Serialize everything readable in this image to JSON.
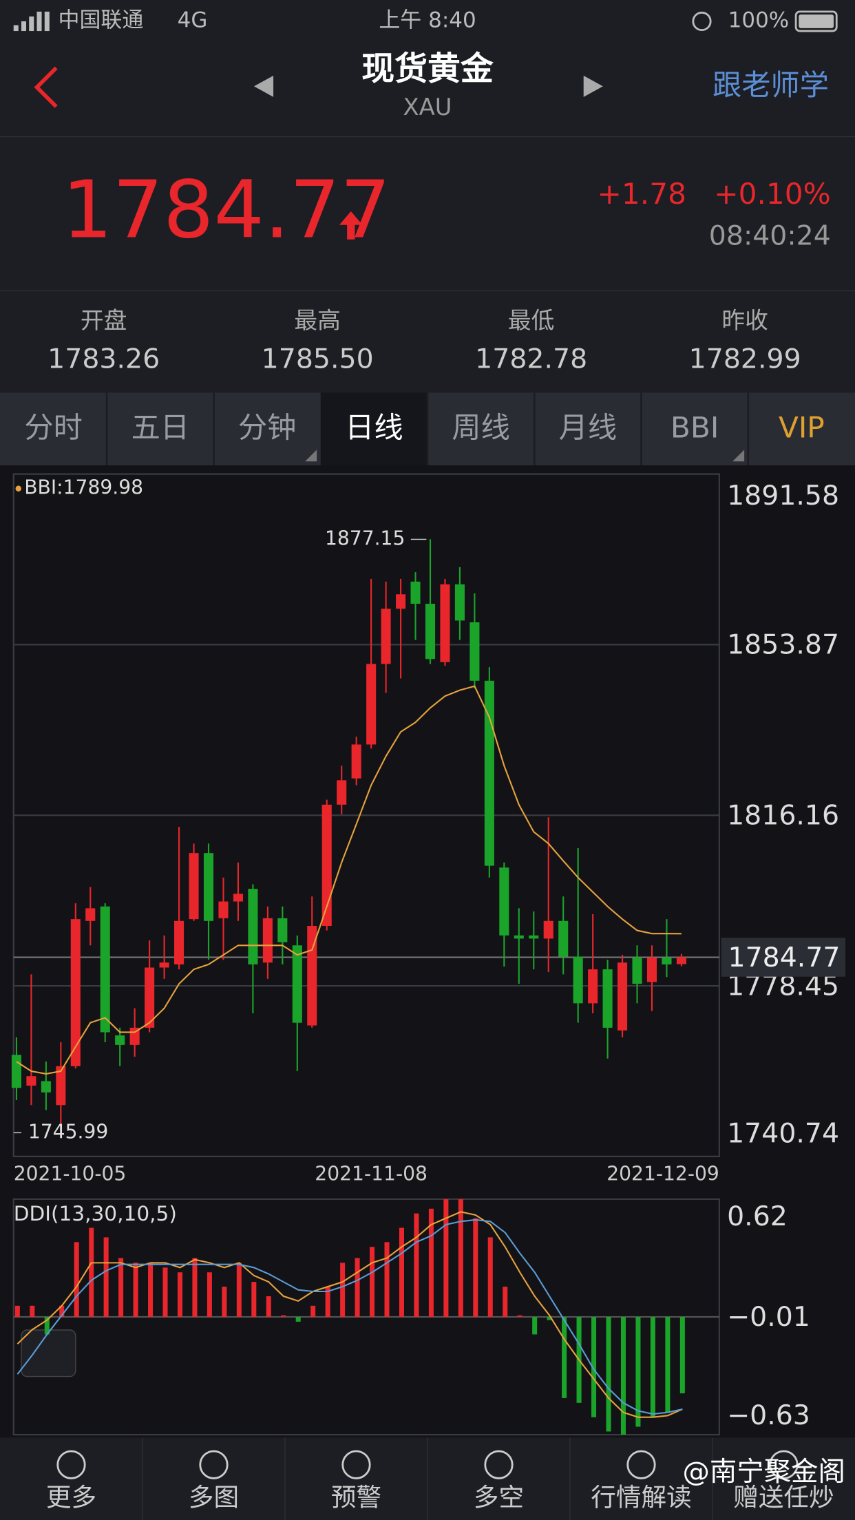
{
  "status": {
    "carrier": "中国联通",
    "network": "4G",
    "time": "上午 8:40",
    "battery": "100%"
  },
  "header": {
    "title": "现货黄金",
    "code": "XAU",
    "action": "跟老师学"
  },
  "quote": {
    "price": "1784.77",
    "change": "+1.78",
    "change_pct": "+0.10%",
    "time": "08:40:24"
  },
  "stats": [
    {
      "label": "开盘",
      "value": "1783.26"
    },
    {
      "label": "最高",
      "value": "1785.50"
    },
    {
      "label": "最低",
      "value": "1782.78"
    },
    {
      "label": "昨收",
      "value": "1782.99"
    }
  ],
  "tabs": [
    "分时",
    "五日",
    "分钟",
    "日线",
    "周线",
    "月线",
    "BBI",
    "VIP"
  ],
  "nav": [
    "更多",
    "多图",
    "预警",
    "多空",
    "行情解读",
    "赠送任炒"
  ],
  "watermark": "@南宁聚金阁",
  "chart_data": [
    {
      "type": "candlestick",
      "categories": [
        "2021-10-05",
        null,
        null,
        null,
        null,
        null,
        null,
        null,
        null,
        null,
        null,
        null,
        null,
        null,
        null,
        null,
        null,
        null,
        null,
        null,
        null,
        null,
        null,
        null,
        "2021-11-08",
        null,
        null,
        null,
        null,
        null,
        null,
        null,
        null,
        null,
        null,
        null,
        null,
        null,
        null,
        null,
        null,
        null,
        null,
        null,
        null,
        "2021-12-09"
      ],
      "open": [
        1763.2,
        1756.4,
        1757.4,
        1752.1,
        1760.7,
        1792.8,
        1796.0,
        1767.5,
        1765.4,
        1769.2,
        1782.5,
        1783.2,
        1793.2,
        1807.8,
        1793.4,
        1797.1,
        1799.9,
        1783.6,
        1793.4,
        1787.4,
        1769.7,
        1791.7,
        1818.5,
        1824.3,
        1831.8,
        1849.6,
        1861.8,
        1867.8,
        1862.9,
        1850.0,
        1867.2,
        1858.8,
        1845.9,
        1804.6,
        1789.6,
        1789.6,
        1788.9,
        1792.8,
        1784.9,
        1774.6,
        1782.1,
        1768.6,
        1784.7,
        1779.3,
        1784.7,
        1783.26
      ],
      "close": [
        1755.9,
        1758.5,
        1754.9,
        1760.7,
        1793.2,
        1795.6,
        1768.2,
        1765.4,
        1769.2,
        1782.5,
        1783.6,
        1792.8,
        1807.8,
        1792.8,
        1797.1,
        1798.8,
        1783.2,
        1793.4,
        1788.1,
        1770.3,
        1791.7,
        1818.5,
        1823.9,
        1831.8,
        1849.6,
        1861.8,
        1865.0,
        1862.9,
        1850.7,
        1867.2,
        1859.2,
        1845.9,
        1805.0,
        1789.6,
        1788.9,
        1788.9,
        1792.8,
        1784.9,
        1774.6,
        1782.1,
        1769.2,
        1783.6,
        1778.9,
        1784.7,
        1783.2,
        1784.77
      ],
      "high": [
        1767.1,
        1781.0,
        1761.7,
        1766.0,
        1796.7,
        1800.3,
        1796.7,
        1769.2,
        1773.5,
        1788.5,
        1789.6,
        1813.6,
        1809.9,
        1809.9,
        1802.4,
        1805.7,
        1800.9,
        1796.0,
        1796.0,
        1789.6,
        1798.2,
        1819.6,
        1827.1,
        1833.5,
        1868.4,
        1867.8,
        1868.4,
        1869.9,
        1877.15,
        1868.4,
        1871.0,
        1865.2,
        1848.9,
        1805.7,
        1795.6,
        1794.9,
        1815.7,
        1798.2,
        1808.9,
        1794.3,
        1784.2,
        1785.3,
        1787.4,
        1787.4,
        1793.2,
        1785.5
      ],
      "low": [
        1753.2,
        1752.1,
        1751.0,
        1745.99,
        1760.2,
        1787.4,
        1766.0,
        1760.7,
        1762.8,
        1768.2,
        1780.0,
        1782.1,
        1792.8,
        1784.2,
        1784.2,
        1792.8,
        1772.4,
        1780.0,
        1783.2,
        1759.6,
        1769.2,
        1790.7,
        1816.4,
        1822.8,
        1830.9,
        1843.2,
        1846.4,
        1854.9,
        1849.6,
        1849.2,
        1854.9,
        1844.2,
        1802.4,
        1782.7,
        1778.9,
        1782.1,
        1781.5,
        1781.0,
        1770.3,
        1772.4,
        1762.4,
        1767.1,
        1774.6,
        1772.9,
        1780.4,
        1782.78
      ],
      "up_color": "#e8262b",
      "down_color": "#1aa42a",
      "bbi": {
        "label": "BBI:1789.98",
        "color": "#e6a23c",
        "values": [
          1761.7,
          1759.6,
          1759.0,
          1759.6,
          1765.0,
          1770.3,
          1771.4,
          1768.2,
          1768.2,
          1770.3,
          1773.5,
          1778.9,
          1782.1,
          1783.2,
          1785.3,
          1787.4,
          1787.4,
          1787.4,
          1787.4,
          1785.3,
          1786.4,
          1796.0,
          1805.7,
          1814.2,
          1822.8,
          1829.2,
          1834.6,
          1836.7,
          1839.9,
          1842.5,
          1843.8,
          1844.7,
          1837.8,
          1827.1,
          1818.5,
          1812.5,
          1809.9,
          1806.1,
          1802.4,
          1799.2,
          1796.0,
          1793.2,
          1790.7,
          1790.0,
          1790.0,
          1789.98
        ]
      },
      "last_price": 1784.77,
      "ylim": [
        1740.74,
        1891.58
      ],
      "yticks": [
        1891.58,
        1853.87,
        1816.16,
        1778.45,
        1740.74
      ],
      "grid": true
    },
    {
      "type": "combo",
      "title": "DDI(13,30,10,5)",
      "values": [
        0.07,
        0.07,
        -0.11,
        0.07,
        0.47,
        0.56,
        0.5,
        0.37,
        0.34,
        0.34,
        0.31,
        0.28,
        0.37,
        0.28,
        0.19,
        0.34,
        0.22,
        0.13,
        0.01,
        -0.03,
        0.07,
        0.19,
        0.34,
        0.37,
        0.44,
        0.47,
        0.56,
        0.65,
        0.68,
        0.74,
        0.74,
        0.62,
        0.5,
        0.19,
        0.01,
        -0.11,
        -0.02,
        -0.51,
        -0.54,
        -0.63,
        -0.72,
        -0.74,
        -0.69,
        -0.63,
        -0.6,
        -0.48
      ],
      "up_color": "#e8262b",
      "down_color": "#1aa42a",
      "series": [
        {
          "color": "#e6a23c",
          "values": [
            -0.17,
            -0.08,
            -0.02,
            0.07,
            0.19,
            0.34,
            0.34,
            0.34,
            0.31,
            0.34,
            0.34,
            0.31,
            0.36,
            0.34,
            0.31,
            0.34,
            0.26,
            0.22,
            0.13,
            0.1,
            0.16,
            0.19,
            0.22,
            0.28,
            0.34,
            0.37,
            0.44,
            0.5,
            0.58,
            0.62,
            0.66,
            0.64,
            0.58,
            0.44,
            0.28,
            0.13,
            0.01,
            -0.14,
            -0.27,
            -0.39,
            -0.51,
            -0.6,
            -0.63,
            -0.63,
            -0.62,
            -0.58
          ]
        },
        {
          "color": "#5b9bd5",
          "values": [
            -0.36,
            -0.24,
            -0.11,
            0.01,
            0.13,
            0.23,
            0.29,
            0.33,
            0.33,
            0.33,
            0.33,
            0.33,
            0.33,
            0.33,
            0.33,
            0.33,
            0.31,
            0.27,
            0.22,
            0.17,
            0.16,
            0.16,
            0.19,
            0.23,
            0.28,
            0.34,
            0.4,
            0.47,
            0.51,
            0.58,
            0.6,
            0.61,
            0.6,
            0.53,
            0.4,
            0.28,
            0.13,
            -0.02,
            -0.17,
            -0.33,
            -0.45,
            -0.54,
            -0.59,
            -0.61,
            -0.6,
            -0.58
          ]
        }
      ],
      "ylim": [
        -0.74,
        0.74
      ],
      "yticks": [
        0.62,
        {
          "value": -0.01,
          "label": "−0.01"
        },
        {
          "value": -0.63,
          "label": "−0.63"
        }
      ],
      "grid": false
    }
  ]
}
